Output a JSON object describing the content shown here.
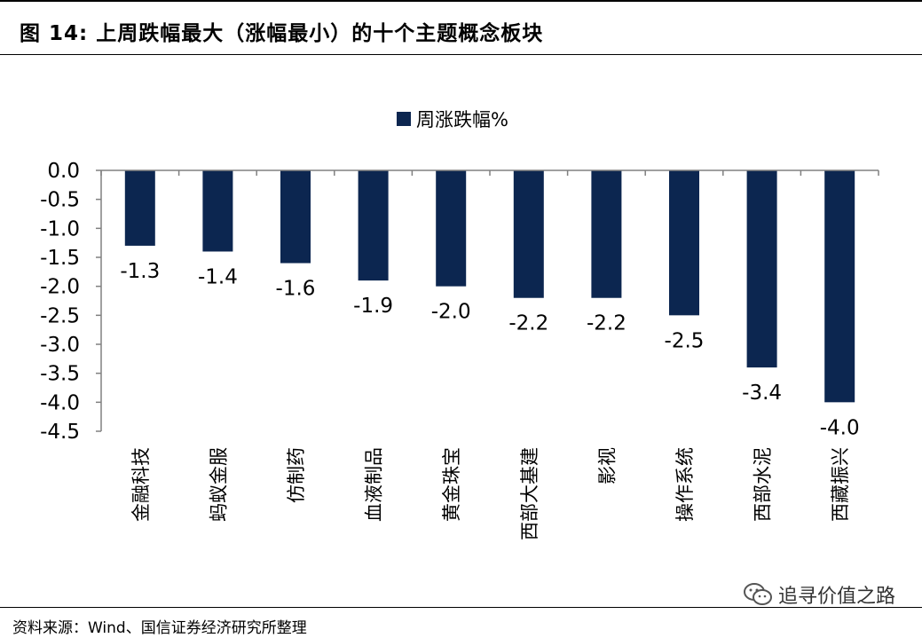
{
  "header": {
    "title": "图  14:  上周跌幅最大（涨幅最小）的十个主题概念板块"
  },
  "footer": {
    "source": "资料来源：Wind、国信证券经济研究所整理"
  },
  "watermark": {
    "text": "追寻价值之路",
    "icon": "wechat-icon"
  },
  "colors": {
    "bar": "#0c2650",
    "axis": "#808080"
  },
  "chart_data": {
    "type": "bar",
    "title": "",
    "xlabel": "",
    "ylabel": "",
    "ylim": [
      -4.5,
      0.0
    ],
    "yticks": [
      "0.0",
      "-0.5",
      "-1.0",
      "-1.5",
      "-2.0",
      "-2.5",
      "-3.0",
      "-3.5",
      "-4.0",
      "-4.5"
    ],
    "grid": false,
    "legend": {
      "position": "top-center",
      "entries": [
        "周涨跌幅%"
      ]
    },
    "categories": [
      "金融科技",
      "蚂蚁金服",
      "仿制药",
      "血液制品",
      "黄金珠宝",
      "西部大基建",
      "影视",
      "操作系统",
      "西部水泥",
      "西藏振兴"
    ],
    "series": [
      {
        "name": "周涨跌幅%",
        "values": [
          -1.3,
          -1.4,
          -1.6,
          -1.9,
          -2.0,
          -2.2,
          -2.2,
          -2.5,
          -3.4,
          -4.0
        ]
      }
    ]
  }
}
